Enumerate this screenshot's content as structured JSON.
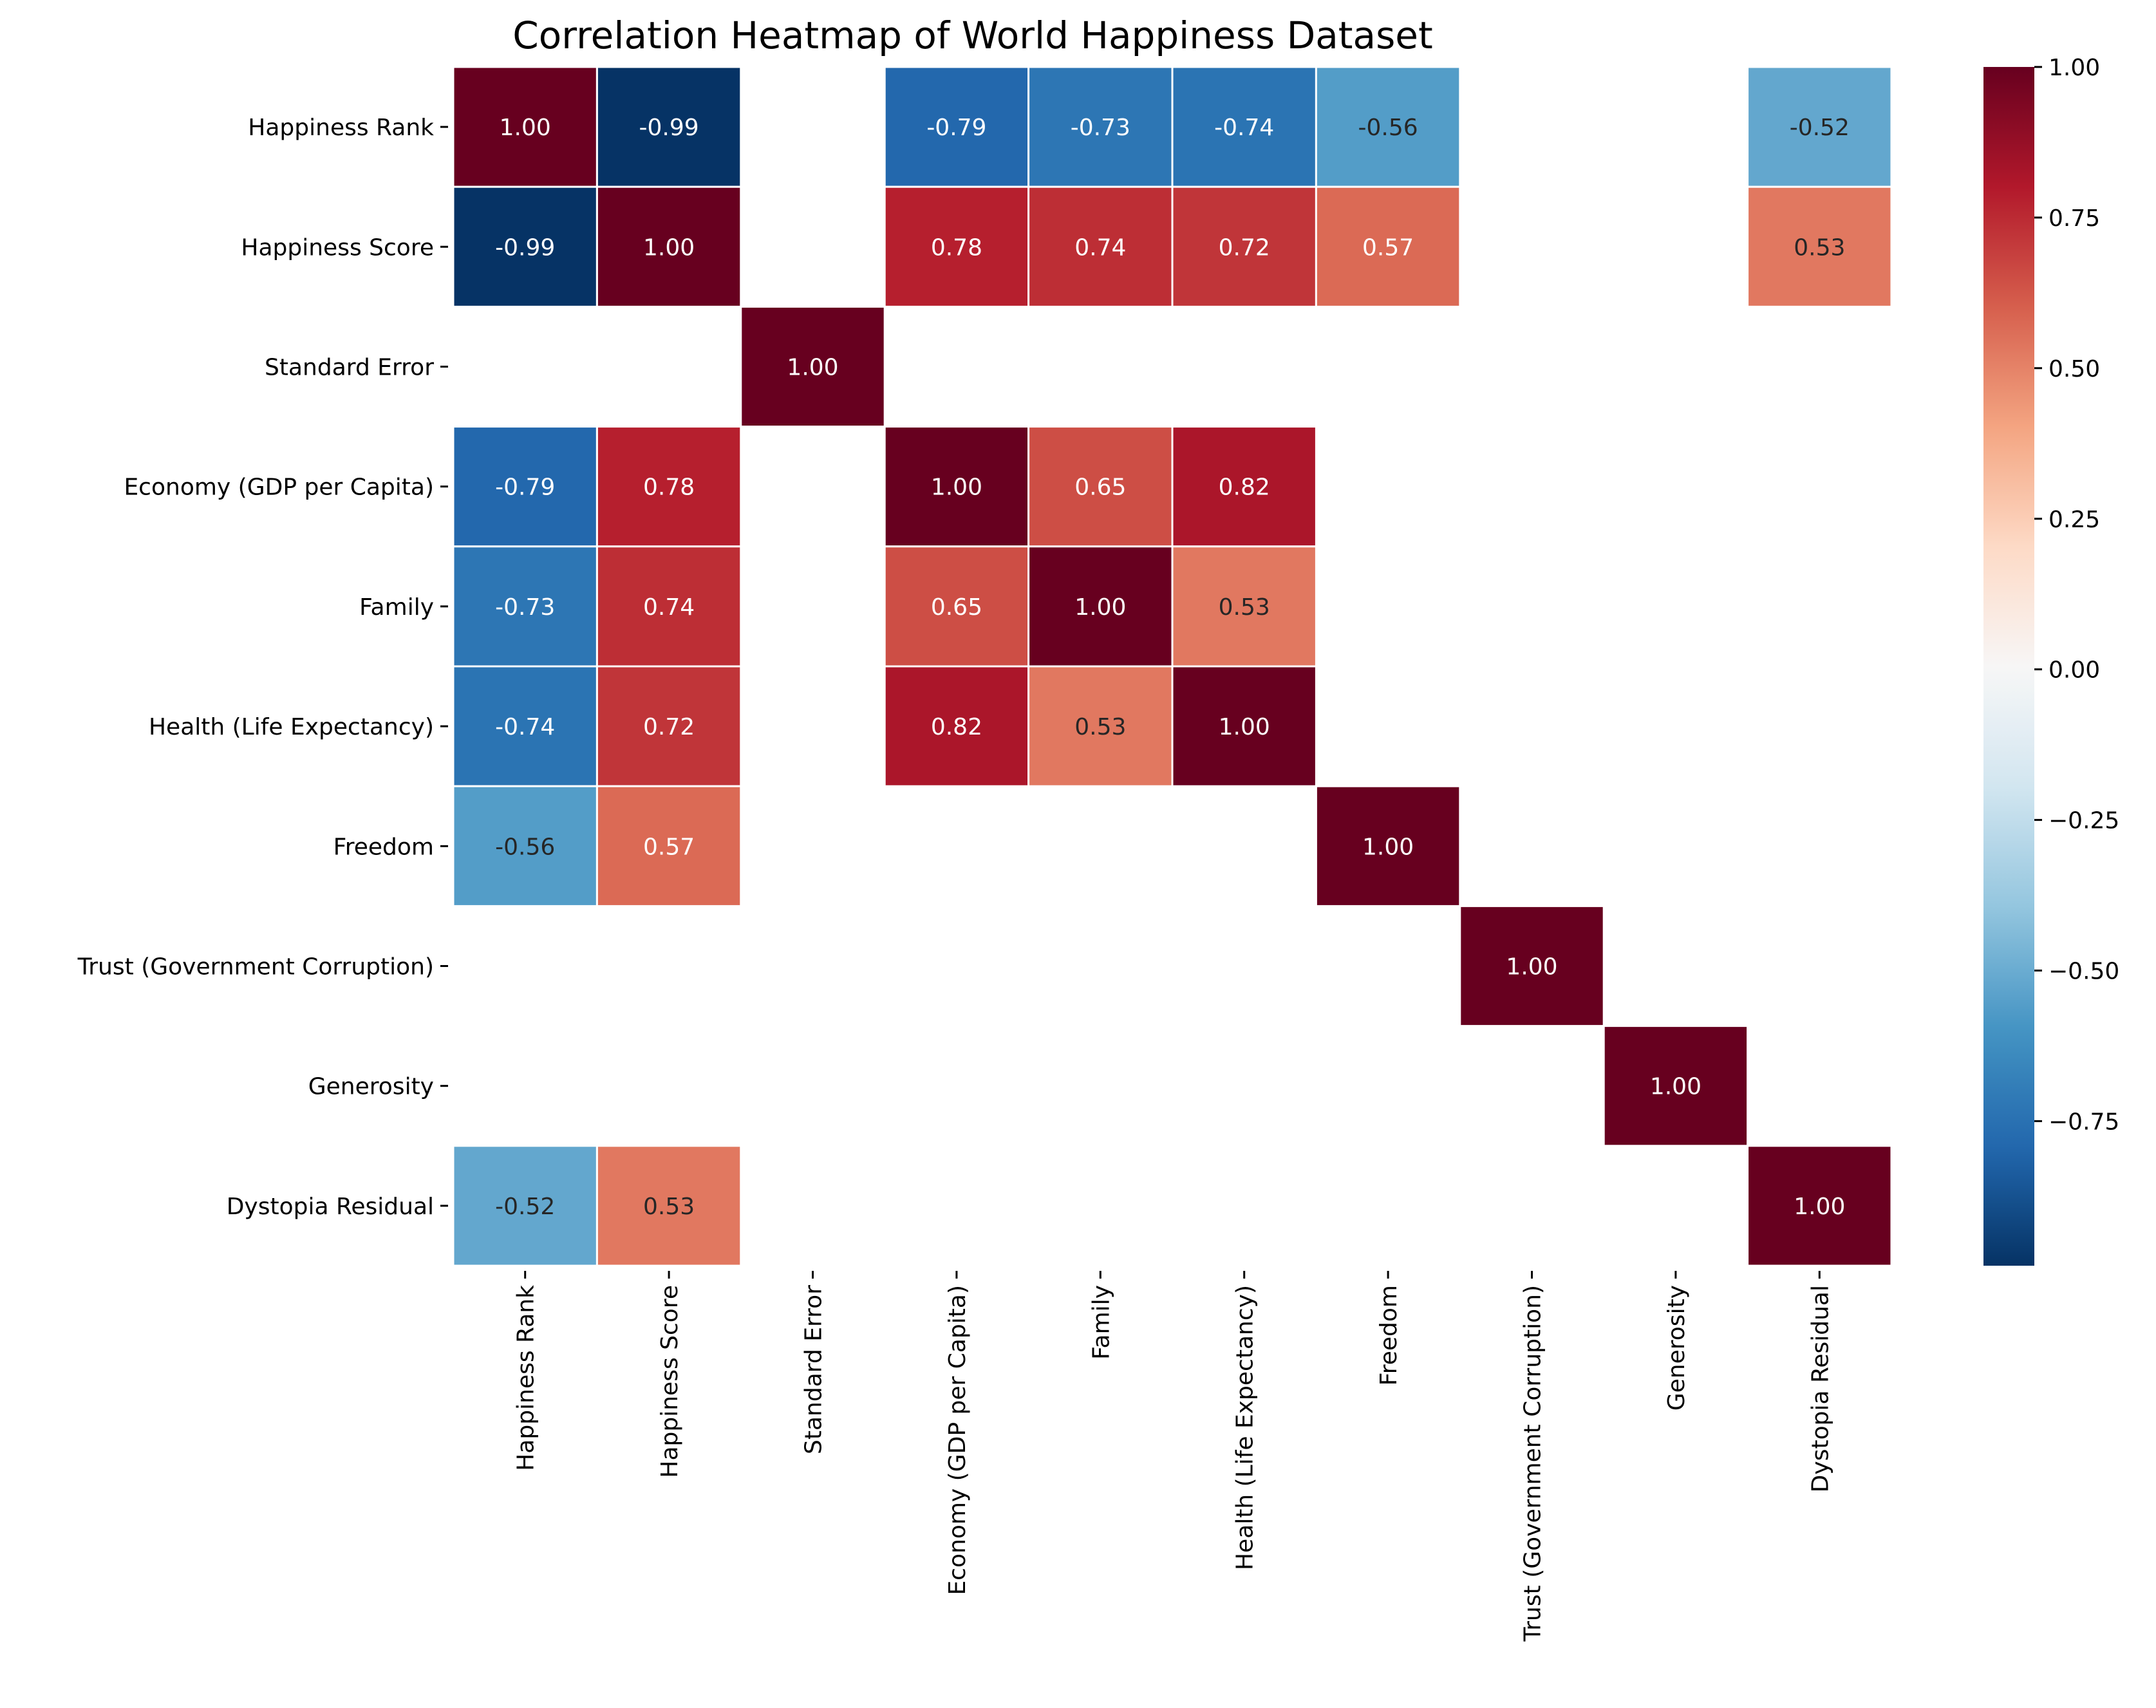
{
  "chart_data": {
    "type": "heatmap",
    "title": "Correlation Heatmap of World Happiness Dataset",
    "rows": [
      "Happiness Rank",
      "Happiness Score",
      "Standard Error",
      "Economy (GDP per Capita)",
      "Family",
      "Health (Life Expectancy)",
      "Freedom",
      "Trust (Government Corruption)",
      "Generosity",
      "Dystopia Residual"
    ],
    "columns": [
      "Happiness Rank",
      "Happiness Score",
      "Standard Error",
      "Economy (GDP per Capita)",
      "Family",
      "Health (Life Expectancy)",
      "Freedom",
      "Trust (Government Corruption)",
      "Generosity",
      "Dystopia Residual"
    ],
    "values": [
      [
        1.0,
        -0.99,
        null,
        -0.79,
        -0.73,
        -0.74,
        -0.56,
        null,
        null,
        -0.52
      ],
      [
        -0.99,
        1.0,
        null,
        0.78,
        0.74,
        0.72,
        0.57,
        null,
        null,
        0.53
      ],
      [
        null,
        null,
        1.0,
        null,
        null,
        null,
        null,
        null,
        null,
        null
      ],
      [
        -0.79,
        0.78,
        null,
        1.0,
        0.65,
        0.82,
        null,
        null,
        null,
        null
      ],
      [
        -0.73,
        0.74,
        null,
        0.65,
        1.0,
        0.53,
        null,
        null,
        null,
        null
      ],
      [
        -0.74,
        0.72,
        null,
        0.82,
        0.53,
        1.0,
        null,
        null,
        null,
        null
      ],
      [
        -0.56,
        0.57,
        null,
        null,
        null,
        null,
        1.0,
        null,
        null,
        null
      ],
      [
        null,
        null,
        null,
        null,
        null,
        null,
        null,
        1.0,
        null,
        null
      ],
      [
        null,
        null,
        null,
        null,
        null,
        null,
        null,
        null,
        1.0,
        null
      ],
      [
        -0.52,
        0.53,
        null,
        null,
        null,
        null,
        null,
        null,
        null,
        1.0
      ]
    ],
    "value_format": "2 decimals",
    "colormap": "RdBu_r",
    "colormap_stops": [
      "#053061",
      "#2166ac",
      "#4393c3",
      "#92c5de",
      "#d1e5f0",
      "#f7f7f7",
      "#fddbc7",
      "#f4a582",
      "#d6604d",
      "#b2182b",
      "#67001f"
    ],
    "vmin": -0.99,
    "vmax": 1.0,
    "colorbar": {
      "ticks": [
        "1.00",
        "0.75",
        "0.50",
        "0.25",
        "0.00",
        "−0.25",
        "−0.50",
        "−0.75"
      ],
      "tick_values": [
        1.0,
        0.75,
        0.5,
        0.25,
        0.0,
        -0.25,
        -0.5,
        -0.75
      ]
    },
    "cell_border_color": "#ffffff",
    "grid": false
  }
}
